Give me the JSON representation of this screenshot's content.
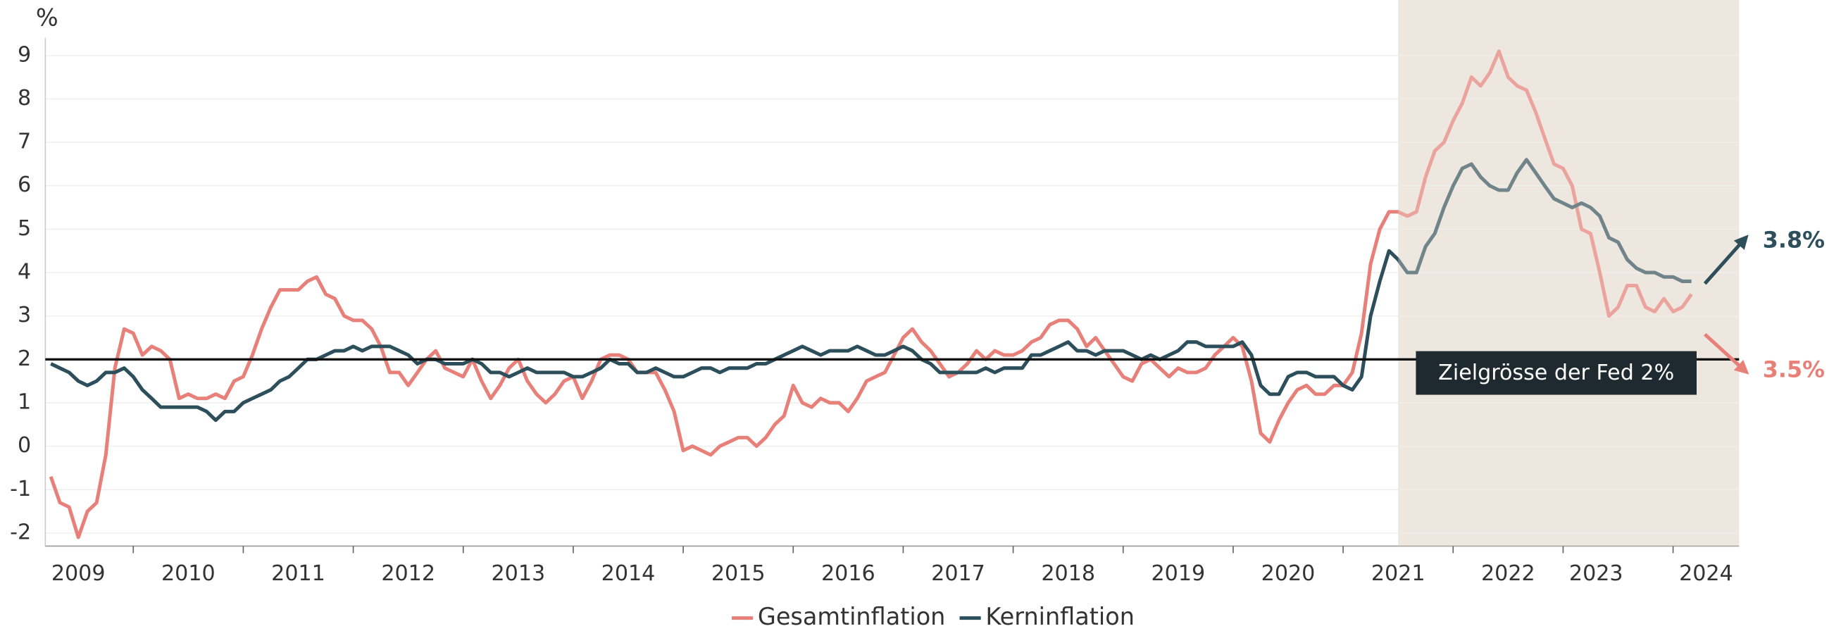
{
  "chart_data": {
    "type": "line",
    "y_label": "%",
    "x": [
      2009.25,
      2009.333,
      2009.417,
      2009.5,
      2009.583,
      2009.667,
      2009.75,
      2009.833,
      2009.917,
      2010,
      2010.083,
      2010.167,
      2010.25,
      2010.333,
      2010.417,
      2010.5,
      2010.583,
      2010.667,
      2010.75,
      2010.833,
      2010.917,
      2011,
      2011.083,
      2011.167,
      2011.25,
      2011.333,
      2011.417,
      2011.5,
      2011.583,
      2011.667,
      2011.75,
      2011.833,
      2011.917,
      2012,
      2012.083,
      2012.167,
      2012.25,
      2012.333,
      2012.417,
      2012.5,
      2012.583,
      2012.667,
      2012.75,
      2012.833,
      2012.917,
      2013,
      2013.083,
      2013.167,
      2013.25,
      2013.333,
      2013.417,
      2013.5,
      2013.583,
      2013.667,
      2013.75,
      2013.833,
      2013.917,
      2014,
      2014.083,
      2014.167,
      2014.25,
      2014.333,
      2014.417,
      2014.5,
      2014.583,
      2014.667,
      2014.75,
      2014.833,
      2014.917,
      2015,
      2015.083,
      2015.167,
      2015.25,
      2015.333,
      2015.417,
      2015.5,
      2015.583,
      2015.667,
      2015.75,
      2015.833,
      2015.917,
      2016,
      2016.083,
      2016.167,
      2016.25,
      2016.333,
      2016.417,
      2016.5,
      2016.583,
      2016.667,
      2016.75,
      2016.833,
      2016.917,
      2017,
      2017.083,
      2017.167,
      2017.25,
      2017.333,
      2017.417,
      2017.5,
      2017.583,
      2017.667,
      2017.75,
      2017.833,
      2017.917,
      2018,
      2018.083,
      2018.167,
      2018.25,
      2018.333,
      2018.417,
      2018.5,
      2018.583,
      2018.667,
      2018.75,
      2018.833,
      2018.917,
      2019,
      2019.083,
      2019.167,
      2019.25,
      2019.333,
      2019.417,
      2019.5,
      2019.583,
      2019.667,
      2019.75,
      2019.833,
      2019.917,
      2020,
      2020.083,
      2020.167,
      2020.25,
      2020.333,
      2020.417,
      2020.5,
      2020.583,
      2020.667,
      2020.75,
      2020.833,
      2020.917,
      2021,
      2021.083,
      2021.167,
      2021.25,
      2021.333,
      2021.417,
      2021.5,
      2021.583,
      2021.667,
      2021.75,
      2021.833,
      2021.917,
      2022,
      2022.083,
      2022.167,
      2022.25,
      2022.333,
      2022.417,
      2022.5,
      2022.583,
      2022.667,
      2022.75,
      2022.833,
      2022.917,
      2023,
      2023.083,
      2023.167,
      2023.25,
      2023.333,
      2023.417,
      2023.5,
      2023.583,
      2023.667,
      2023.75,
      2023.833,
      2023.917,
      2024,
      2024.083,
      2024.167
    ],
    "series": [
      {
        "name": "Gesamtinflation",
        "color": "#e8807a",
        "end_label": "3.5%",
        "values": [
          -0.7,
          -1.3,
          -1.4,
          -2.1,
          -1.5,
          -1.3,
          -0.2,
          1.8,
          2.7,
          2.6,
          2.1,
          2.3,
          2.2,
          2.0,
          1.1,
          1.2,
          1.1,
          1.1,
          1.2,
          1.1,
          1.5,
          1.6,
          2.1,
          2.7,
          3.2,
          3.6,
          3.6,
          3.6,
          3.8,
          3.9,
          3.5,
          3.4,
          3.0,
          2.9,
          2.9,
          2.7,
          2.3,
          1.7,
          1.7,
          1.4,
          1.7,
          2.0,
          2.2,
          1.8,
          1.7,
          1.6,
          2.0,
          1.5,
          1.1,
          1.4,
          1.8,
          2.0,
          1.5,
          1.2,
          1.0,
          1.2,
          1.5,
          1.6,
          1.1,
          1.5,
          2.0,
          2.1,
          2.1,
          2.0,
          1.7,
          1.7,
          1.7,
          1.3,
          0.8,
          -0.1,
          0.0,
          -0.1,
          -0.2,
          0.0,
          0.1,
          0.2,
          0.2,
          0.0,
          0.2,
          0.5,
          0.7,
          1.4,
          1.0,
          0.9,
          1.1,
          1.0,
          1.0,
          0.8,
          1.1,
          1.5,
          1.6,
          1.7,
          2.1,
          2.5,
          2.7,
          2.4,
          2.2,
          1.9,
          1.6,
          1.7,
          1.9,
          2.2,
          2.0,
          2.2,
          2.1,
          2.1,
          2.2,
          2.4,
          2.5,
          2.8,
          2.9,
          2.9,
          2.7,
          2.3,
          2.5,
          2.2,
          1.9,
          1.6,
          1.5,
          1.9,
          2.0,
          1.8,
          1.6,
          1.8,
          1.7,
          1.7,
          1.8,
          2.1,
          2.3,
          2.5,
          2.3,
          1.5,
          0.3,
          0.1,
          0.6,
          1.0,
          1.3,
          1.4,
          1.2,
          1.2,
          1.4,
          1.4,
          1.7,
          2.6,
          4.2,
          5.0,
          5.4,
          5.4,
          5.3,
          5.4,
          6.2,
          6.8,
          7.0,
          7.5,
          7.9,
          8.5,
          8.3,
          8.6,
          9.1,
          8.5,
          8.3,
          8.2,
          7.7,
          7.1,
          6.5,
          6.4,
          6.0,
          5.0,
          4.9,
          4.0,
          3.0,
          3.2,
          3.7,
          3.7,
          3.2,
          3.1,
          3.4,
          3.1,
          3.2,
          3.5
        ]
      },
      {
        "name": "Kerninflation",
        "color": "#2d4f5c",
        "end_label": "3.8%",
        "values": [
          1.9,
          1.8,
          1.7,
          1.5,
          1.4,
          1.5,
          1.7,
          1.7,
          1.8,
          1.6,
          1.3,
          1.1,
          0.9,
          0.9,
          0.9,
          0.9,
          0.9,
          0.8,
          0.6,
          0.8,
          0.8,
          1.0,
          1.1,
          1.2,
          1.3,
          1.5,
          1.6,
          1.8,
          2.0,
          2.0,
          2.1,
          2.2,
          2.2,
          2.3,
          2.2,
          2.3,
          2.3,
          2.3,
          2.2,
          2.1,
          1.9,
          2.0,
          2.0,
          1.9,
          1.9,
          1.9,
          2.0,
          1.9,
          1.7,
          1.7,
          1.6,
          1.7,
          1.8,
          1.7,
          1.7,
          1.7,
          1.7,
          1.6,
          1.6,
          1.7,
          1.8,
          2.0,
          1.9,
          1.9,
          1.7,
          1.7,
          1.8,
          1.7,
          1.6,
          1.6,
          1.7,
          1.8,
          1.8,
          1.7,
          1.8,
          1.8,
          1.8,
          1.9,
          1.9,
          2.0,
          2.1,
          2.2,
          2.3,
          2.2,
          2.1,
          2.2,
          2.2,
          2.2,
          2.3,
          2.2,
          2.1,
          2.1,
          2.2,
          2.3,
          2.2,
          2.0,
          1.9,
          1.7,
          1.7,
          1.7,
          1.7,
          1.7,
          1.8,
          1.7,
          1.8,
          1.8,
          1.8,
          2.1,
          2.1,
          2.2,
          2.3,
          2.4,
          2.2,
          2.2,
          2.1,
          2.2,
          2.2,
          2.2,
          2.1,
          2.0,
          2.1,
          2.0,
          2.1,
          2.2,
          2.4,
          2.4,
          2.3,
          2.3,
          2.3,
          2.3,
          2.4,
          2.1,
          1.4,
          1.2,
          1.2,
          1.6,
          1.7,
          1.7,
          1.6,
          1.6,
          1.6,
          1.4,
          1.3,
          1.6,
          3.0,
          3.8,
          4.5,
          4.3,
          4.0,
          4.0,
          4.6,
          4.9,
          5.5,
          6.0,
          6.4,
          6.5,
          6.2,
          6.0,
          5.9,
          5.9,
          6.3,
          6.6,
          6.3,
          6.0,
          5.7,
          5.6,
          5.5,
          5.6,
          5.5,
          5.3,
          4.8,
          4.7,
          4.3,
          4.1,
          4.0,
          4.0,
          3.9,
          3.9,
          3.8,
          3.8
        ]
      }
    ],
    "xlim": [
      2009.2,
      2024.6
    ],
    "xticks": [
      2010,
      2011,
      2012,
      2013,
      2014,
      2015,
      2016,
      2017,
      2018,
      2019,
      2020,
      2021,
      2022,
      2023,
      2024
    ],
    "xtick_labels": [
      {
        "value": 2009.5,
        "label": "2009"
      },
      {
        "value": 2010.5,
        "label": "2010"
      },
      {
        "value": 2011.5,
        "label": "2011"
      },
      {
        "value": 2012.5,
        "label": "2012"
      },
      {
        "value": 2013.5,
        "label": "2013"
      },
      {
        "value": 2014.5,
        "label": "2014"
      },
      {
        "value": 2015.5,
        "label": "2015"
      },
      {
        "value": 2016.5,
        "label": "2016"
      },
      {
        "value": 2017.5,
        "label": "2017"
      },
      {
        "value": 2018.5,
        "label": "2018"
      },
      {
        "value": 2019.5,
        "label": "2019"
      },
      {
        "value": 2020.5,
        "label": "2020"
      },
      {
        "value": 2021.5,
        "label": "2021"
      },
      {
        "value": 2022.5,
        "label": "2022"
      },
      {
        "value": 2023.3,
        "label": "2023"
      },
      {
        "value": 2024.3,
        "label": "2024"
      }
    ],
    "ylim": [
      -2.3,
      9.3
    ],
    "yticks": [
      -2,
      -1,
      0,
      1,
      2,
      3,
      4,
      5,
      6,
      7,
      8,
      9
    ],
    "grid": true,
    "highlight_range": [
      2021.5,
      2024.6
    ],
    "reference_line": {
      "value": 2,
      "label": "Zielgrösse der Fed 2%"
    },
    "legend": "bottom"
  }
}
